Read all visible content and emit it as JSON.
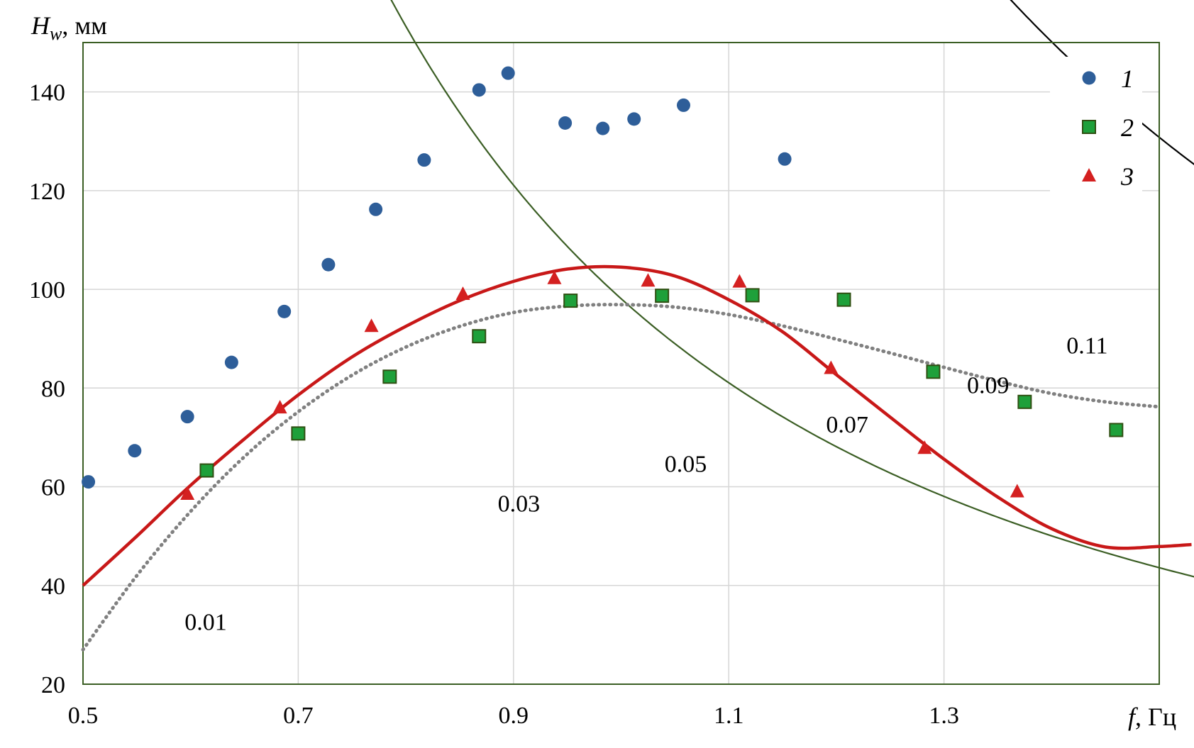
{
  "chart_data": {
    "type": "scatter",
    "xlabel": {
      "symbol": "f",
      "unit": ", Гц"
    },
    "ylabel": {
      "symbol": "H",
      "subscript": "w",
      "unit": ", мм"
    },
    "xlim": [
      0.5,
      1.5
    ],
    "ylim": [
      20,
      150
    ],
    "x_ticks": [
      "0.5",
      "0.7",
      "0.9",
      "1.1",
      "1.3"
    ],
    "x_tick_values": [
      0.5,
      0.7,
      0.9,
      1.1,
      1.3
    ],
    "y_ticks": [
      "20",
      "40",
      "60",
      "80",
      "100",
      "120",
      "140"
    ],
    "y_tick_values": [
      20,
      40,
      60,
      80,
      100,
      120,
      140
    ],
    "grid": true,
    "legend_position": "top-right",
    "series": [
      {
        "name": "1",
        "marker": "circle",
        "color": "#2e5e99",
        "points": [
          [
            0.505,
            61
          ],
          [
            0.548,
            67.3
          ],
          [
            0.597,
            74.2
          ],
          [
            0.638,
            85.2
          ],
          [
            0.687,
            95.5
          ],
          [
            0.728,
            105
          ],
          [
            0.772,
            116.2
          ],
          [
            0.817,
            126.2
          ],
          [
            0.868,
            140.4
          ],
          [
            0.895,
            143.8
          ],
          [
            0.948,
            133.7
          ],
          [
            0.983,
            132.6
          ],
          [
            1.012,
            134.5
          ],
          [
            1.058,
            137.3
          ],
          [
            1.152,
            126.4
          ]
        ]
      },
      {
        "name": "2",
        "marker": "square",
        "color": "#1ea03a",
        "points": [
          [
            0.615,
            63.3
          ],
          [
            0.7,
            70.8
          ],
          [
            0.785,
            82.3
          ],
          [
            0.868,
            90.5
          ],
          [
            0.953,
            97.7
          ],
          [
            1.038,
            98.7
          ],
          [
            1.122,
            98.8
          ],
          [
            1.207,
            97.9
          ],
          [
            1.29,
            83.3
          ],
          [
            1.375,
            77.2
          ],
          [
            1.46,
            71.5
          ]
        ]
      },
      {
        "name": "3",
        "marker": "triangle",
        "color": "#d42020",
        "points": [
          [
            0.597,
            58.5
          ],
          [
            0.683,
            76
          ],
          [
            0.768,
            92.5
          ],
          [
            0.853,
            99
          ],
          [
            0.938,
            102.2
          ],
          [
            1.025,
            101.7
          ],
          [
            1.11,
            101.5
          ],
          [
            1.195,
            84
          ],
          [
            1.282,
            67.8
          ],
          [
            1.368,
            59
          ]
        ]
      }
    ],
    "fit_red": {
      "color": "#c81818",
      "points": [
        [
          0.5,
          40
        ],
        [
          0.55,
          50
        ],
        [
          0.6,
          60.3
        ],
        [
          0.65,
          69.7
        ],
        [
          0.7,
          78.6
        ],
        [
          0.75,
          86.3
        ],
        [
          0.8,
          92.5
        ],
        [
          0.85,
          97.7
        ],
        [
          0.9,
          101.6
        ],
        [
          0.95,
          104.1
        ],
        [
          1.0,
          104.5
        ],
        [
          1.05,
          102.7
        ],
        [
          1.1,
          97.9
        ],
        [
          1.15,
          91.4
        ],
        [
          1.2,
          82.7
        ],
        [
          1.25,
          74.1
        ],
        [
          1.3,
          65.6
        ],
        [
          1.35,
          57.9
        ],
        [
          1.4,
          51.5
        ],
        [
          1.45,
          47.8
        ],
        [
          1.5,
          47.9
        ],
        [
          1.53,
          48.3
        ]
      ]
    },
    "fit_dotted": {
      "color": "#808080",
      "points": [
        [
          0.5,
          27
        ],
        [
          0.55,
          42
        ],
        [
          0.6,
          55
        ],
        [
          0.65,
          66.1
        ],
        [
          0.7,
          75.2
        ],
        [
          0.75,
          82.6
        ],
        [
          0.8,
          88.3
        ],
        [
          0.85,
          92.5
        ],
        [
          0.9,
          95.3
        ],
        [
          0.95,
          96.6
        ],
        [
          1.0,
          96.9
        ],
        [
          1.05,
          96.4
        ],
        [
          1.1,
          94.9
        ],
        [
          1.15,
          92.6
        ],
        [
          1.2,
          89.9
        ],
        [
          1.25,
          87.1
        ],
        [
          1.3,
          84.2
        ],
        [
          1.35,
          81.4
        ],
        [
          1.4,
          78.9
        ],
        [
          1.45,
          77.2
        ],
        [
          1.5,
          76.2
        ]
      ]
    },
    "iso_curves": [
      {
        "label": "0.01",
        "color": "#3b5e24",
        "k": 0.01,
        "label_at": [
          0.614,
          31
        ]
      },
      {
        "label": "0.03",
        "color": "#000000",
        "k": 0.03,
        "label_at": [
          0.905,
          55
        ]
      },
      {
        "label": "0.05",
        "color": "#000000",
        "k": 0.05,
        "label_at": [
          1.06,
          63
        ]
      },
      {
        "label": "0.07",
        "color": "#000000",
        "k": 0.07,
        "label_at": [
          1.21,
          71
        ]
      },
      {
        "label": "0.09",
        "color": "#000000",
        "k": 0.09,
        "label_at": [
          1.341,
          79
        ]
      },
      {
        "label": "0.11",
        "color": "#000000",
        "k": 0.11,
        "label_at": [
          1.433,
          87
        ]
      }
    ]
  }
}
